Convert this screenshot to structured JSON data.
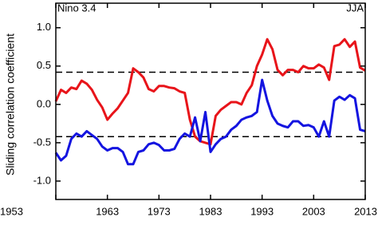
{
  "chart_data": {
    "type": "line",
    "annotations": {
      "left": "Nino 3.4",
      "right": "JJA"
    },
    "ylabel": "Sliding correlation coefficient",
    "x": [
      1953,
      1954,
      1955,
      1956,
      1957,
      1958,
      1959,
      1960,
      1961,
      1962,
      1963,
      1964,
      1965,
      1966,
      1967,
      1968,
      1969,
      1970,
      1971,
      1972,
      1973,
      1974,
      1975,
      1976,
      1977,
      1978,
      1979,
      1980,
      1981,
      1982,
      1983,
      1984,
      1985,
      1986,
      1987,
      1988,
      1989,
      1990,
      1991,
      1992,
      1993,
      1994,
      1995,
      1996,
      1997,
      1998,
      1999,
      2000,
      2001,
      2002,
      2003,
      2004,
      2005,
      2006,
      2007,
      2008,
      2009,
      2010,
      2011,
      2012,
      2013
    ],
    "series": [
      {
        "color": "#e8141a",
        "values": [
          0.04,
          0.19,
          0.15,
          0.22,
          0.2,
          0.31,
          0.27,
          0.19,
          0.06,
          -0.04,
          -0.2,
          -0.12,
          -0.05,
          0.05,
          0.15,
          0.47,
          0.42,
          0.35,
          0.2,
          0.17,
          0.24,
          0.24,
          0.22,
          0.21,
          0.17,
          0.15,
          -0.2,
          -0.42,
          -0.48,
          -0.5,
          -0.52,
          -0.15,
          -0.07,
          -0.02,
          0.03,
          0.03,
          0.0,
          0.15,
          0.25,
          0.5,
          0.65,
          0.85,
          0.72,
          0.45,
          0.38,
          0.45,
          0.45,
          0.42,
          0.5,
          0.47,
          0.47,
          0.52,
          0.48,
          0.32,
          0.76,
          0.78,
          0.85,
          0.75,
          0.82,
          0.48,
          0.44
        ]
      },
      {
        "color": "#1414e0",
        "values": [
          -0.63,
          -0.73,
          -0.67,
          -0.45,
          -0.38,
          -0.42,
          -0.35,
          -0.4,
          -0.45,
          -0.55,
          -0.6,
          -0.57,
          -0.57,
          -0.62,
          -0.78,
          -0.78,
          -0.62,
          -0.6,
          -0.52,
          -0.5,
          -0.53,
          -0.6,
          -0.6,
          -0.58,
          -0.45,
          -0.38,
          -0.42,
          -0.17,
          -0.48,
          -0.1,
          -0.62,
          -0.52,
          -0.45,
          -0.42,
          -0.33,
          -0.28,
          -0.2,
          -0.17,
          -0.15,
          -0.1,
          0.32,
          0.05,
          -0.15,
          -0.25,
          -0.28,
          -0.3,
          -0.22,
          -0.22,
          -0.28,
          -0.27,
          -0.3,
          -0.42,
          -0.22,
          -0.42,
          0.05,
          0.1,
          0.06,
          0.12,
          0.08,
          -0.33,
          -0.35
        ]
      }
    ],
    "hlines": [
      0.42,
      -0.42
    ],
    "xlim": [
      1953,
      2013
    ],
    "xticks": [
      1953,
      1963,
      1973,
      1983,
      1993,
      2003,
      2013
    ],
    "ylim": [
      -1.24,
      1.32
    ],
    "yticks": [
      {
        "value": -1,
        "label": "-1.0"
      },
      -0.5,
      {
        "value": 0,
        "label": "0.0"
      },
      0.5,
      {
        "value": 1,
        "label": "1.0"
      }
    ]
  }
}
